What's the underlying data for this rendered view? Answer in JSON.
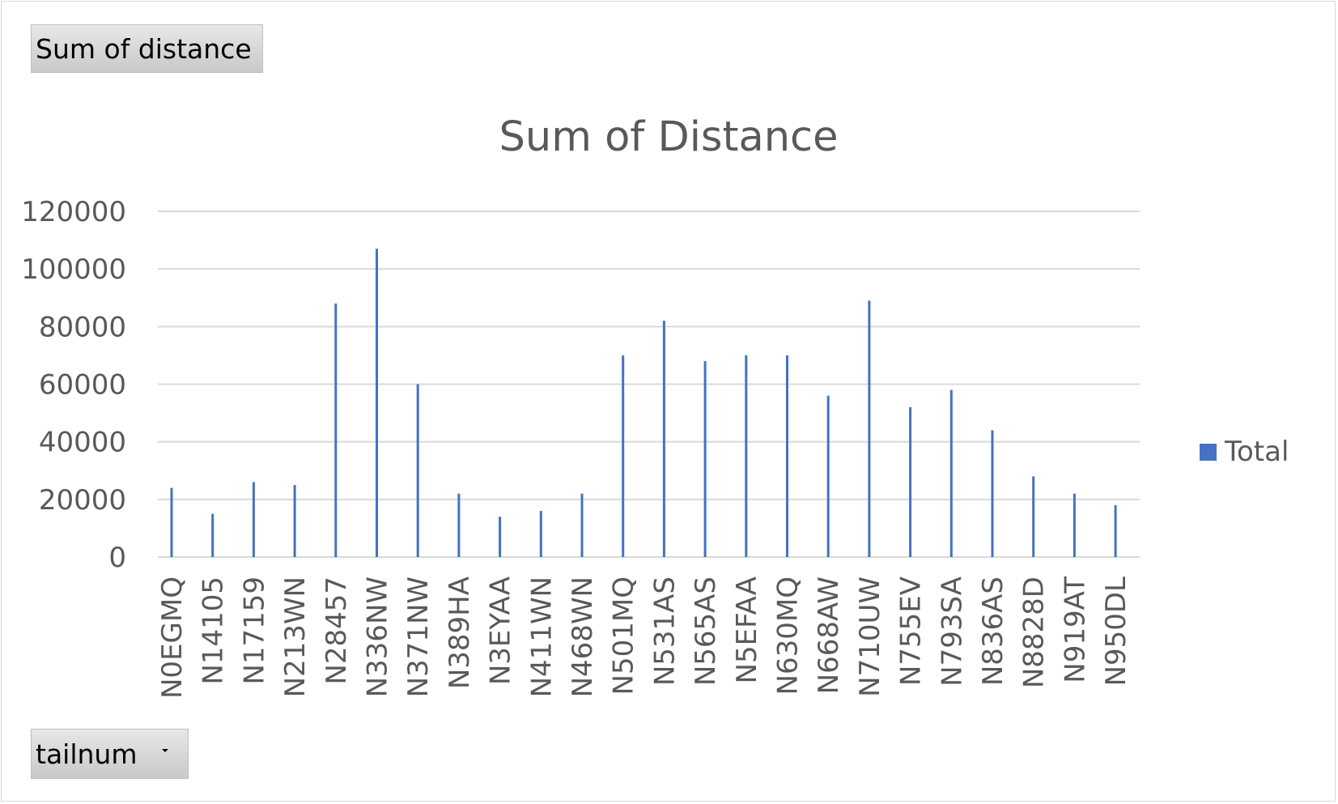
{
  "field_buttons": {
    "measure_label": "Sum of distance",
    "axis_label": "tailnum"
  },
  "colors": {
    "series": "#4472C4",
    "gridline": "#d9d9d9",
    "text": "#595959"
  },
  "chart_data": {
    "type": "bar",
    "title": "Sum of Distance",
    "xlabel": "",
    "ylabel": "",
    "ylim": [
      0,
      120000
    ],
    "yticks": [
      0,
      20000,
      40000,
      60000,
      80000,
      100000,
      120000
    ],
    "grid": true,
    "legend_position": "right",
    "categories": [
      "N0EGMQ",
      "N14105",
      "N17159",
      "N213WN",
      "N28457",
      "N336NW",
      "N371NW",
      "N389HA",
      "N3EYAA",
      "N411WN",
      "N468WN",
      "N501MQ",
      "N531AS",
      "N565AS",
      "N5EFAA",
      "N630MQ",
      "N668AW",
      "N710UW",
      "N755EV",
      "N793SA",
      "N836AS",
      "N8828D",
      "N919AT",
      "N950DL"
    ],
    "series": [
      {
        "name": "Total",
        "values": [
          24000,
          15000,
          26000,
          25000,
          88000,
          107000,
          60000,
          22000,
          14000,
          16000,
          22000,
          70000,
          82000,
          68000,
          70000,
          70000,
          56000,
          89000,
          52000,
          58000,
          44000,
          28000,
          22000,
          18000
        ]
      }
    ]
  }
}
